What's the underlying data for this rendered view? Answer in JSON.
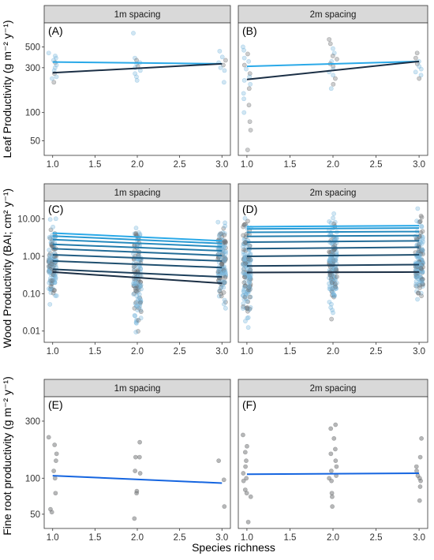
{
  "figure": {
    "xlabel": "Species richness"
  },
  "colors": {
    "light_line": "#2aa9e8",
    "dark_line": "#1b2f45",
    "regression_blue": "#1565e0",
    "point_blue": "#7ab8de",
    "point_grey": "#6e7072",
    "strip_fill": "#d9d9d9"
  },
  "chart_data": [
    {
      "type": "scatter",
      "row": "leaf",
      "panel": "A",
      "panel_label": "(A)",
      "facet": "1m spacing",
      "ylabel": "Leaf Productivity (g m⁻² y⁻¹)",
      "yscale": "log",
      "ylim": [
        35,
        900
      ],
      "yticks": [
        50,
        100,
        300,
        500
      ],
      "xlim": [
        0.9,
        3.1
      ],
      "xticks": [
        "1.0",
        "1.5",
        "2.0",
        "2.5",
        "3.0"
      ],
      "trend_lines": [
        {
          "x": [
            1,
            3
          ],
          "y": [
            345,
            330
          ],
          "tone": "light"
        },
        {
          "x": [
            1,
            3
          ],
          "y": [
            265,
            330
          ],
          "tone": "dark"
        }
      ],
      "points": {
        "x1": [
          430,
          400,
          380,
          360,
          340,
          320,
          300,
          280,
          260,
          240,
          230,
          210
        ],
        "x2": [
          700,
          380,
          360,
          340,
          330,
          310,
          300,
          280,
          260,
          240,
          220
        ],
        "x3": [
          450,
          390,
          360,
          340,
          320,
          300,
          280,
          210
        ]
      }
    },
    {
      "type": "scatter",
      "row": "leaf",
      "panel": "B",
      "panel_label": "(B)",
      "facet": "2m spacing",
      "yscale": "log",
      "ylim": [
        35,
        900
      ],
      "xlim": [
        0.9,
        3.1
      ],
      "xticks": [
        "1.0",
        "1.5",
        "2.0",
        "2.5",
        "3.0"
      ],
      "trend_lines": [
        {
          "x": [
            1,
            3
          ],
          "y": [
            310,
            350
          ],
          "tone": "light"
        },
        {
          "x": [
            1,
            3
          ],
          "y": [
            225,
            350
          ],
          "tone": "dark"
        }
      ],
      "points": {
        "x1": [
          500,
          460,
          420,
          380,
          350,
          320,
          290,
          260,
          240,
          220,
          200,
          180,
          160,
          140,
          120,
          100,
          80,
          65,
          40
        ],
        "x2": [
          600,
          540,
          480,
          430,
          400,
          370,
          350,
          330,
          310,
          290,
          270,
          250,
          230,
          200,
          180
        ],
        "x3": [
          430,
          380,
          350,
          330,
          310,
          290,
          270,
          250,
          230
        ]
      }
    },
    {
      "type": "scatter",
      "row": "wood",
      "panel": "C",
      "panel_label": "(C)",
      "facet": "1m spacing",
      "ylabel": "Wood Productivity (BAI; cm² y⁻¹)",
      "yscale": "log",
      "ylim": [
        0.005,
        30
      ],
      "yticks": [
        0.01,
        0.1,
        1.0,
        10.0
      ],
      "yticklabels": [
        "0.01",
        "0.10",
        "1.00",
        "10.00"
      ],
      "xlim": [
        0.9,
        3.1
      ],
      "xticks": [
        "1.0",
        "1.5",
        "2.0",
        "2.5",
        "3.0"
      ],
      "trend_lines": [
        {
          "x": [
            1,
            3
          ],
          "y": [
            4.2,
            2.6
          ],
          "tone": 0.0
        },
        {
          "x": [
            1,
            3
          ],
          "y": [
            3.5,
            2.2
          ],
          "tone": 0.12
        },
        {
          "x": [
            1,
            3
          ],
          "y": [
            2.8,
            1.8
          ],
          "tone": 0.25
        },
        {
          "x": [
            1,
            3
          ],
          "y": [
            2.1,
            1.4
          ],
          "tone": 0.38
        },
        {
          "x": [
            1,
            3
          ],
          "y": [
            1.6,
            1.05
          ],
          "tone": 0.5
        },
        {
          "x": [
            1,
            3
          ],
          "y": [
            1.1,
            0.75
          ],
          "tone": 0.62
        },
        {
          "x": [
            1,
            3
          ],
          "y": [
            0.75,
            0.5
          ],
          "tone": 0.74
        },
        {
          "x": [
            1,
            3
          ],
          "y": [
            0.45,
            0.28
          ],
          "tone": 0.86
        },
        {
          "x": [
            1,
            3
          ],
          "y": [
            0.38,
            0.19
          ],
          "tone": 1.0
        }
      ],
      "points": {
        "x1_range": [
          0.03,
          14
        ],
        "x2_range": [
          0.006,
          16
        ],
        "x3_range": [
          0.025,
          12
        ]
      }
    },
    {
      "type": "scatter",
      "row": "wood",
      "panel": "D",
      "panel_label": "(D)",
      "facet": "2m spacing",
      "yscale": "log",
      "ylim": [
        0.005,
        30
      ],
      "xlim": [
        0.9,
        3.1
      ],
      "xticks": [
        "1.0",
        "1.5",
        "2.0",
        "2.5",
        "3.0"
      ],
      "trend_lines": [
        {
          "x": [
            1,
            3
          ],
          "y": [
            6.2,
            6.6
          ],
          "tone": 0.0
        },
        {
          "x": [
            1,
            3
          ],
          "y": [
            5.4,
            5.7
          ],
          "tone": 0.12
        },
        {
          "x": [
            1,
            3
          ],
          "y": [
            4.4,
            4.6
          ],
          "tone": 0.25
        },
        {
          "x": [
            1,
            3
          ],
          "y": [
            3.4,
            3.6
          ],
          "tone": 0.38
        },
        {
          "x": [
            1,
            3
          ],
          "y": [
            2.4,
            2.6
          ],
          "tone": 0.5
        },
        {
          "x": [
            1,
            3
          ],
          "y": [
            1.6,
            1.75
          ],
          "tone": 0.62
        },
        {
          "x": [
            1,
            3
          ],
          "y": [
            1.0,
            1.1
          ],
          "tone": 0.74
        },
        {
          "x": [
            1,
            3
          ],
          "y": [
            0.55,
            0.6
          ],
          "tone": 0.86
        },
        {
          "x": [
            1,
            3
          ],
          "y": [
            0.37,
            0.38
          ],
          "tone": 1.0
        }
      ],
      "points": {
        "x1_range": [
          0.01,
          22
        ],
        "x2_range": [
          0.02,
          22
        ],
        "x3_range": [
          0.03,
          20
        ]
      }
    },
    {
      "type": "scatter",
      "row": "root",
      "panel": "E",
      "panel_label": "(E)",
      "facet": "1m spacing",
      "ylabel": "Fine root productivity (g m⁻² y⁻¹)",
      "yscale": "log",
      "ylim": [
        38,
        480
      ],
      "yticks": [
        50,
        100,
        300
      ],
      "xlim": [
        0.9,
        3.1
      ],
      "xticks": [
        "1.0",
        "1.5",
        "2.0",
        "2.5",
        "3.0"
      ],
      "trend_lines": [
        {
          "x": [
            1,
            3
          ],
          "y": [
            105,
            91
          ],
          "tone": "regression"
        }
      ],
      "points": {
        "x1": [
          220,
          190,
          160,
          140,
          115,
          100,
          75,
          55,
          52
        ],
        "x2": [
          200,
          150,
          150,
          115,
          110,
          78,
          75,
          46
        ],
        "x3": [
          140,
          97,
          58
        ]
      }
    },
    {
      "type": "scatter",
      "row": "root",
      "panel": "F",
      "panel_label": "(F)",
      "facet": "2m spacing",
      "yscale": "log",
      "ylim": [
        38,
        480
      ],
      "xlim": [
        0.9,
        3.1
      ],
      "xticks": [
        "1.0",
        "1.5",
        "2.0",
        "2.5",
        "3.0"
      ],
      "trend_lines": [
        {
          "x": [
            1,
            3
          ],
          "y": [
            108,
            110
          ],
          "tone": "regression"
        }
      ],
      "points": {
        "x1": [
          230,
          185,
          165,
          140,
          125,
          110,
          100,
          95,
          80,
          75,
          70,
          43
        ],
        "x2": [
          280,
          260,
          215,
          175,
          160,
          140,
          125,
          115,
          105,
          100,
          95,
          75,
          70,
          58
        ],
        "x3": [
          215,
          150,
          125,
          115,
          105,
          100,
          95,
          85,
          65
        ]
      }
    }
  ]
}
